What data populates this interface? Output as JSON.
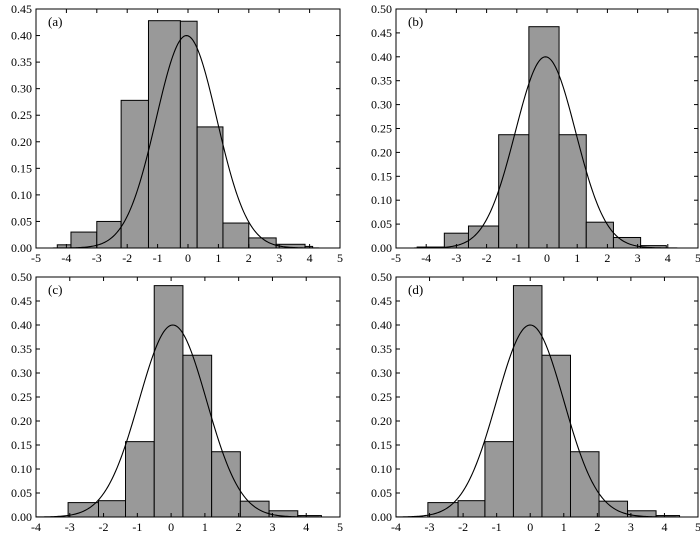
{
  "chart_data": [
    {
      "type": "bar",
      "label": "(a)",
      "xlim": [
        -5,
        5
      ],
      "ylim": [
        0,
        0.45
      ],
      "xticks": [
        "-5",
        "-4",
        "-3",
        "-2",
        "-1",
        "0",
        "1",
        "2",
        "3",
        "4",
        "5"
      ],
      "yticks": [
        "0.00",
        "0.05",
        "0.10",
        "0.15",
        "0.20",
        "0.25",
        "0.30",
        "0.35",
        "0.40",
        "0.45"
      ],
      "bins": [
        [
          -4.3,
          -3.85,
          0.006
        ],
        [
          -3.85,
          -3.0,
          0.03
        ],
        [
          -3.0,
          -2.2,
          0.05
        ],
        [
          -2.2,
          -1.3,
          0.278
        ],
        [
          -1.3,
          -0.25,
          0.428
        ],
        [
          -0.25,
          0.3,
          0.427
        ],
        [
          0.3,
          1.15,
          0.228
        ],
        [
          1.15,
          2.0,
          0.047
        ],
        [
          2.0,
          2.9,
          0.019
        ],
        [
          2.9,
          3.85,
          0.007
        ],
        [
          3.85,
          4.1,
          0.003
        ]
      ],
      "bins_note": "[x_start, x_end, height]",
      "curve": {
        "type": "normal_pdf",
        "mean": -0.05,
        "sd": 1.0,
        "peak": 0.4
      }
    },
    {
      "type": "bar",
      "label": "(b)",
      "xlim": [
        -5,
        5
      ],
      "ylim": [
        0,
        0.5
      ],
      "xticks": [
        "-5",
        "-4",
        "-3",
        "-2",
        "-1",
        "0",
        "1",
        "2",
        "3",
        "4",
        "5"
      ],
      "yticks": [
        "0.00",
        "0.05",
        "0.10",
        "0.15",
        "0.20",
        "0.25",
        "0.30",
        "0.35",
        "0.40",
        "0.45",
        "0.50"
      ],
      "bins": [
        [
          -4.3,
          -3.4,
          0.002
        ],
        [
          -3.4,
          -2.6,
          0.031
        ],
        [
          -2.6,
          -1.6,
          0.046
        ],
        [
          -1.6,
          -0.6,
          0.237
        ],
        [
          -0.6,
          0.4,
          0.463
        ],
        [
          0.4,
          1.3,
          0.237
        ],
        [
          1.3,
          2.2,
          0.054
        ],
        [
          2.2,
          3.1,
          0.022
        ],
        [
          3.1,
          3.95,
          0.005
        ]
      ],
      "bins_note": "[x_start, x_end, height]",
      "curve": {
        "type": "normal_pdf",
        "mean": -0.05,
        "sd": 1.0,
        "peak": 0.4
      }
    },
    {
      "type": "bar",
      "label": "(c)",
      "xlim": [
        -4,
        5
      ],
      "ylim": [
        0,
        0.5
      ],
      "xticks": [
        "-4",
        "-3",
        "-2",
        "-1",
        "0",
        "1",
        "2",
        "3",
        "4",
        "5"
      ],
      "yticks": [
        "0.00",
        "0.05",
        "0.10",
        "0.15",
        "0.20",
        "0.25",
        "0.30",
        "0.35",
        "0.40",
        "0.45",
        "0.50"
      ],
      "bins": [
        [
          -3.05,
          -2.15,
          0.03
        ],
        [
          -2.15,
          -1.35,
          0.034
        ],
        [
          -1.35,
          -0.5,
          0.157
        ],
        [
          -0.5,
          0.35,
          0.482
        ],
        [
          0.35,
          1.2,
          0.337
        ],
        [
          1.2,
          2.05,
          0.136
        ],
        [
          2.05,
          2.9,
          0.033
        ],
        [
          2.9,
          3.75,
          0.013
        ],
        [
          3.75,
          4.45,
          0.003
        ]
      ],
      "bins_note": "[x_start, x_end, height]",
      "curve": {
        "type": "normal_pdf",
        "mean": 0.05,
        "sd": 1.0,
        "peak": 0.4
      }
    },
    {
      "type": "bar",
      "label": "(d)",
      "xlim": [
        -4,
        5
      ],
      "ylim": [
        0,
        0.5
      ],
      "xticks": [
        "-4",
        "-3",
        "-2",
        "-1",
        "0",
        "1",
        "2",
        "3",
        "4",
        "5"
      ],
      "yticks": [
        "0.00",
        "0.05",
        "0.10",
        "0.15",
        "0.20",
        "0.25",
        "0.30",
        "0.35",
        "0.40",
        "0.45",
        "0.50"
      ],
      "bins": [
        [
          -3.05,
          -2.15,
          0.03
        ],
        [
          -2.15,
          -1.35,
          0.034
        ],
        [
          -1.35,
          -0.5,
          0.157
        ],
        [
          -0.5,
          0.35,
          0.482
        ],
        [
          0.35,
          1.2,
          0.337
        ],
        [
          1.2,
          2.05,
          0.136
        ],
        [
          2.05,
          2.9,
          0.033
        ],
        [
          2.9,
          3.75,
          0.013
        ],
        [
          3.75,
          4.45,
          0.003
        ]
      ],
      "bins_note": "[x_start, x_end, height]",
      "curve": {
        "type": "normal_pdf",
        "mean": 0.0,
        "sd": 1.0,
        "peak": 0.4
      }
    }
  ]
}
